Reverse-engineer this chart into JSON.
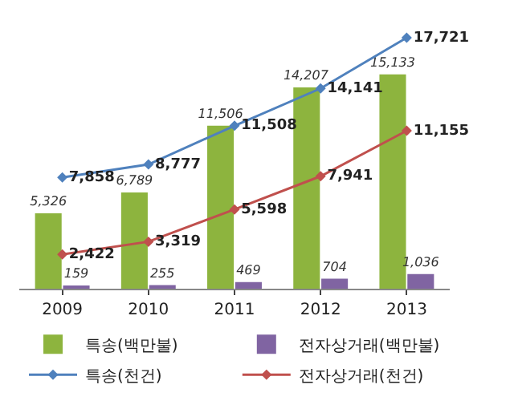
{
  "chart_data": {
    "type": "bar",
    "categories": [
      "2009",
      "2010",
      "2011",
      "2012",
      "2013"
    ],
    "series": [
      {
        "name": "특송(백만불)",
        "color": "#8db43e",
        "values": [
          5326,
          6789,
          11506,
          14207,
          15133
        ],
        "value_labels": [
          "5,326",
          "6,789",
          "11,506",
          "14,207",
          "15,133"
        ]
      },
      {
        "name": "전자상거래(백만불)",
        "color": "#8064a2",
        "values": [
          159,
          255,
          469,
          704,
          1036
        ],
        "value_labels": [
          "159",
          "255",
          "469",
          "704",
          "1,036"
        ]
      },
      {
        "name": "특송(천건)",
        "type": "line",
        "color": "#4f81bd",
        "values": [
          7858,
          8777,
          11508,
          14141,
          17721
        ],
        "value_labels": [
          "7,858",
          "8,777",
          "11,508",
          "14,141",
          "17,721"
        ]
      },
      {
        "name": "전자상거래(천건)",
        "type": "line",
        "color": "#c0504d",
        "values": [
          2422,
          3319,
          5598,
          7941,
          11155
        ],
        "value_labels": [
          "2,422",
          "3,319",
          "5,598",
          "7,941",
          "11,155"
        ]
      }
    ],
    "tick_labels": "x",
    "grid": false,
    "legend": "bottom",
    "marker": "diamond",
    "line_style": "solid"
  }
}
